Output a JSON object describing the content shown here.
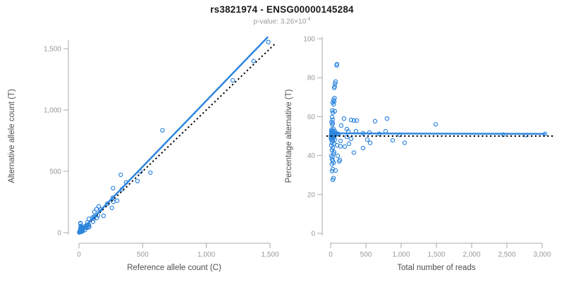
{
  "figure": {
    "title": "rs3821974 - ENSG00000145284",
    "subtitle": {
      "full_text": "p-value: 3.26×10⁻⁴",
      "base": "p-value: 3.26×10",
      "exponent": "-4"
    }
  },
  "chart_data": {
    "type": "scatter",
    "description": "Allele-specific expression for variant rs3821974 in gene ENSG00000145284. Two panels share one sample set: each sample has total read count and percentage of alternative (T) allele reads. Left panel: alternative vs reference allele counts with dotted identity line and solid blue fit line. Right panel: percentage alternative vs total reads with dotted line at 50% and solid blue fit near 51%.",
    "colors": {
      "points": "#2E86DE",
      "fit_line": "#2E86DE",
      "reference_line": "#000000",
      "axis": "#a9a9a9",
      "tick_labels": "#999999",
      "axis_titles": "#4d4d4d",
      "title": "#1a1a1a",
      "subtitle": "#9a9a9a"
    },
    "samples": {
      "columns": [
        "total_reads",
        "pct_alternative_T"
      ],
      "rows": [
        [
          90,
          87
        ],
        [
          85,
          86.3
        ],
        [
          70,
          78
        ],
        [
          62,
          77
        ],
        [
          58,
          75.5
        ],
        [
          50,
          74.8
        ],
        [
          55,
          69.5
        ],
        [
          40,
          68.6
        ],
        [
          50,
          67.8
        ],
        [
          30,
          67.2
        ],
        [
          42,
          66.3
        ],
        [
          22,
          63.2
        ],
        [
          58,
          62.8
        ],
        [
          32,
          62.1
        ],
        [
          20,
          59.8
        ],
        [
          28,
          58.4
        ],
        [
          12,
          57.3
        ],
        [
          30,
          56.6
        ],
        [
          22,
          55.9
        ],
        [
          40,
          53.7
        ],
        [
          12,
          53.3
        ],
        [
          58,
          52.6
        ],
        [
          20,
          51.9
        ],
        [
          6,
          50
        ],
        [
          8,
          50.5
        ],
        [
          9,
          52.5
        ],
        [
          10,
          51
        ],
        [
          12,
          49.5
        ],
        [
          14,
          50.2
        ],
        [
          15,
          52
        ],
        [
          16,
          51.4
        ],
        [
          18,
          50.8
        ],
        [
          20,
          49.9
        ],
        [
          24,
          52.2
        ],
        [
          25,
          50.4
        ],
        [
          28,
          49.2
        ],
        [
          30,
          50.1
        ],
        [
          34,
          52.8
        ],
        [
          35,
          51.2
        ],
        [
          38,
          50.9
        ],
        [
          44,
          51.8
        ],
        [
          45,
          50.6
        ],
        [
          48,
          49.6
        ],
        [
          50,
          51.5
        ],
        [
          55,
          50.3
        ],
        [
          60,
          51.1
        ],
        [
          65,
          50.7
        ],
        [
          70,
          51.6
        ],
        [
          80,
          50.9
        ],
        [
          100,
          51.2
        ],
        [
          110,
          51
        ],
        [
          5,
          48.9
        ],
        [
          10,
          48.2
        ],
        [
          10,
          45.1
        ],
        [
          18,
          46.4
        ],
        [
          20,
          48.4
        ],
        [
          30,
          47.5
        ],
        [
          40,
          48.9
        ],
        [
          50,
          46
        ],
        [
          60,
          48.2
        ],
        [
          90,
          45.3
        ],
        [
          140,
          44.7
        ],
        [
          30,
          43.9
        ],
        [
          20,
          42.8
        ],
        [
          48,
          41.8
        ],
        [
          40,
          40.9
        ],
        [
          10,
          39.9
        ],
        [
          28,
          39.2
        ],
        [
          20,
          38
        ],
        [
          30,
          37.3
        ],
        [
          42,
          36.3
        ],
        [
          18,
          35.5
        ],
        [
          30,
          33
        ],
        [
          20,
          32
        ],
        [
          70,
          32.3
        ],
        [
          40,
          28.4
        ],
        [
          30,
          27.5
        ],
        [
          100,
          39.9
        ],
        [
          120,
          37
        ],
        [
          130,
          37.7
        ],
        [
          140,
          47.5
        ],
        [
          200,
          44.6
        ],
        [
          230,
          49.6
        ],
        [
          260,
          46
        ],
        [
          290,
          48.6
        ],
        [
          330,
          41.5
        ],
        [
          460,
          43.8
        ],
        [
          520,
          48.2
        ],
        [
          560,
          46.5
        ],
        [
          880,
          47.8
        ],
        [
          1050,
          46.6
        ],
        [
          150,
          55.4
        ],
        [
          190,
          59
        ],
        [
          230,
          53.6
        ],
        [
          250,
          52.4
        ],
        [
          290,
          58.3
        ],
        [
          330,
          58
        ],
        [
          360,
          52.5
        ],
        [
          370,
          58
        ],
        [
          460,
          51.4
        ],
        [
          550,
          51.8
        ],
        [
          630,
          57.6
        ],
        [
          690,
          51.1
        ],
        [
          780,
          52.5
        ],
        [
          800,
          59
        ],
        [
          980,
          50.7
        ],
        [
          1490,
          56
        ],
        [
          2450,
          50.7
        ],
        [
          2770,
          50.5
        ],
        [
          3040,
          51.1
        ]
      ]
    },
    "charts": [
      {
        "id": "allele-counts",
        "derive": "counts",
        "xlabel": "Reference allele count (C)",
        "ylabel": "Alternative allele count (T)",
        "xlim": [
          0,
          1500
        ],
        "ylim": [
          0,
          1500
        ],
        "xticks": {
          "values": [
            0,
            500,
            1000,
            1500
          ],
          "labels": [
            "0",
            "500",
            "1,000",
            "1,500"
          ]
        },
        "yticks": {
          "values": [
            0,
            500,
            1000,
            1500
          ],
          "labels": [
            "0",
            "500",
            "1,000",
            "1,500"
          ]
        },
        "grid": false,
        "fit_line": {
          "x1": 0,
          "y1": 0,
          "x2": 1480,
          "y2": 1592
        },
        "reference_line": {
          "type": "identity",
          "style": "dotted",
          "extent": [
            0,
            1545
          ]
        }
      },
      {
        "id": "percentage-vs-reads",
        "derive": "pct",
        "xlabel": "Total number of reads",
        "ylabel": "Percentage alternative (T)",
        "xlim": [
          0,
          3000
        ],
        "ylim": [
          0,
          100
        ],
        "xticks": {
          "values": [
            0,
            500,
            1000,
            1500,
            2000,
            2500,
            3000
          ],
          "labels": [
            "0",
            "500",
            "1,000",
            "1,500",
            "2,000",
            "2,500",
            "3,000"
          ]
        },
        "yticks": {
          "values": [
            0,
            20,
            40,
            60,
            80,
            100
          ],
          "labels": [
            "0",
            "20",
            "40",
            "60",
            "80",
            "100"
          ]
        },
        "grid": false,
        "fit_line": {
          "x1": 20,
          "y1": 51.4,
          "x2": 3040,
          "y2": 51.1
        },
        "reference_line": {
          "type": "hline",
          "y": 50,
          "style": "dotted",
          "x_extent": [
            -60,
            3180
          ]
        }
      }
    ]
  }
}
